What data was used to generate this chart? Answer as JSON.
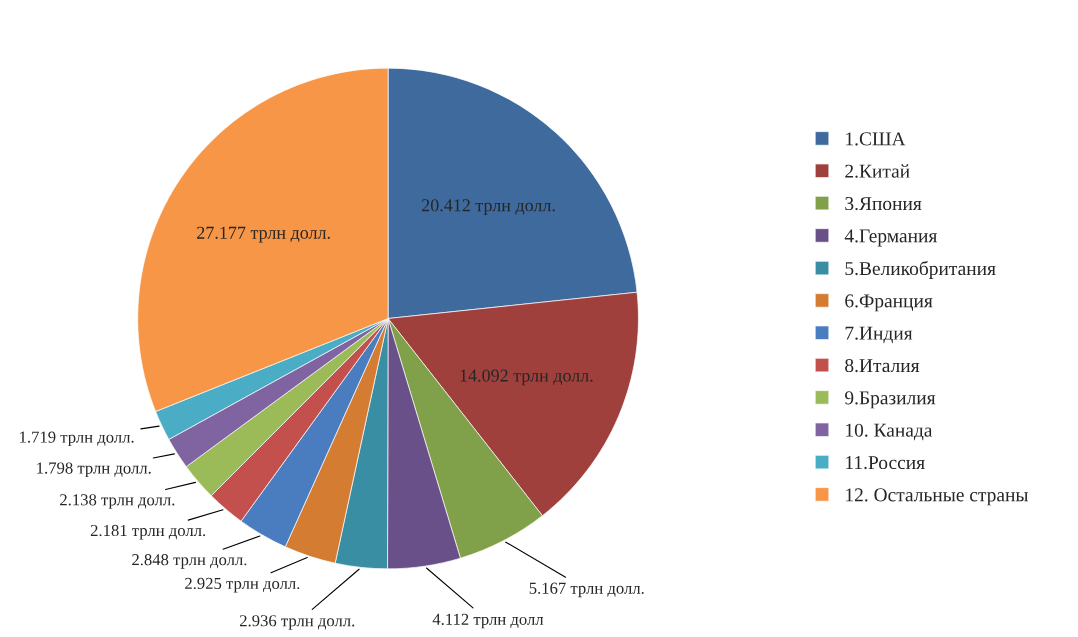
{
  "chart_data": {
    "type": "pie",
    "categories": [
      "1.США",
      "2.Китай",
      "3.Япония",
      "4.Германия",
      "5.Великобритания",
      "6.Франция",
      "7.Индия",
      "8.Италия",
      "9.Бразилия",
      "10. Канада",
      "11.Россия",
      "12. Остальные страны"
    ],
    "values": [
      20.412,
      14.092,
      5.167,
      4.112,
      2.936,
      2.925,
      2.848,
      2.181,
      2.138,
      1.798,
      1.719,
      27.177
    ],
    "value_labels": [
      "20.412 трлн долл.",
      "14.092 трлн долл.",
      "5.167 трлн долл.",
      "4.112 трлн долл",
      "2.936 трлн долл.",
      "2.925 трлн долл.",
      "2.848 трлн долл.",
      "2.181 трлн долл.",
      "2.138 трлн долл.",
      "1.798 трлн долл.",
      "1.719 трлн долл.",
      "27.177 трлн долл."
    ],
    "colors": [
      "#3f6a9e",
      "#a0403d",
      "#80a04a",
      "#6a5088",
      "#3a8ea4",
      "#d57c33",
      "#4a7cc0",
      "#c4504d",
      "#9bbb59",
      "#8064a2",
      "#4bacc6",
      "#f79646"
    ],
    "legend": "right"
  }
}
